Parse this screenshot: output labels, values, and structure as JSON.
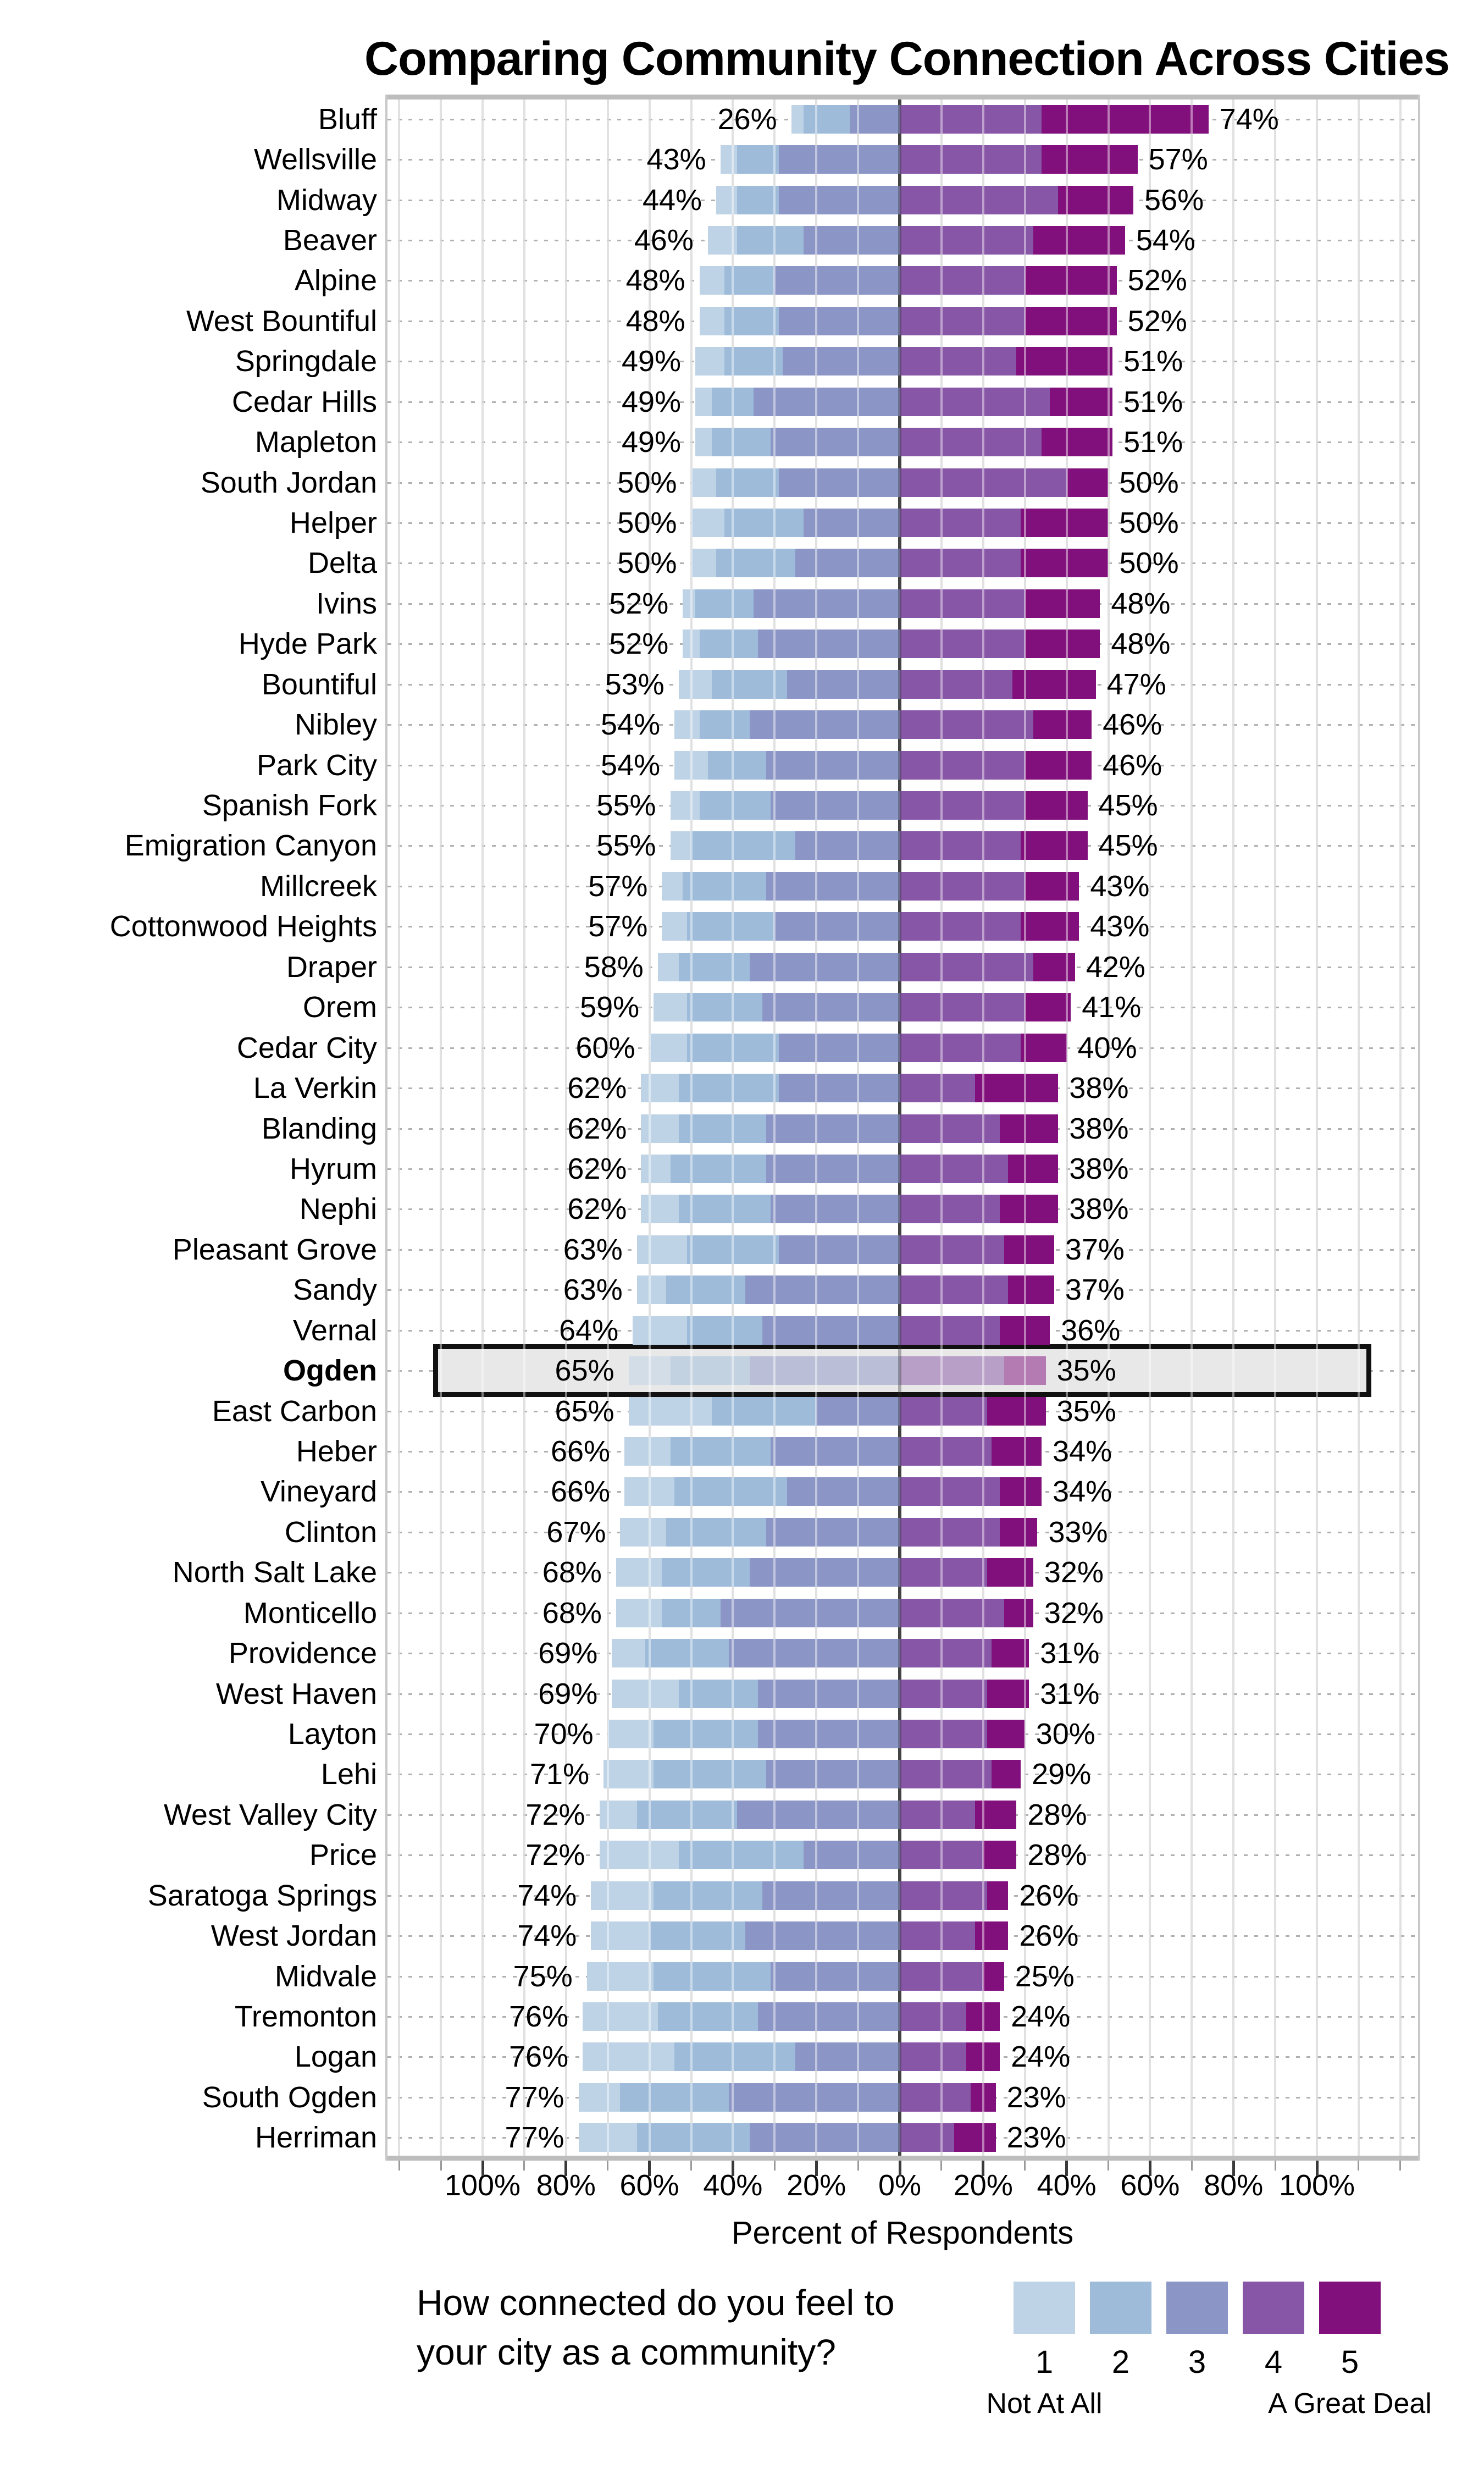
{
  "title": "Comparing Community Connection Across Cities",
  "axis": {
    "xlabel": "Percent of Respondents",
    "tick_values": [
      -100,
      -80,
      -60,
      -40,
      -20,
      0,
      20,
      40,
      60,
      80,
      100
    ],
    "tick_labels": [
      "100%",
      "80%",
      "60%",
      "40%",
      "20%",
      "0%",
      "20%",
      "40%",
      "60%",
      "80%",
      "100%"
    ]
  },
  "legend": {
    "question_line1": "How connected do you feel to",
    "question_line2": "your city as a community?",
    "levels": [
      {
        "label": "1",
        "color": "#bfd3e6"
      },
      {
        "label": "2",
        "color": "#9ebcda"
      },
      {
        "label": "3",
        "color": "#8c96c6"
      },
      {
        "label": "4",
        "color": "#8856a7"
      },
      {
        "label": "5",
        "color": "#810f7c"
      }
    ],
    "low_label": "Not At All",
    "high_label": "A Great Deal"
  },
  "highlight": {
    "city": "Ogden",
    "fill": "#e8e8e8",
    "border": "#111111"
  },
  "chart_data": {
    "type": "bar",
    "variant": "diverging-stacked-likert",
    "orientation": "horizontal",
    "scale_note": "levels 1-3 plotted left of zero, levels 4-5 right of zero; labels show left and right totals",
    "xlim": [
      -123,
      125
    ],
    "grid_step": 10,
    "series_names": [
      "1",
      "2",
      "3",
      "4",
      "5"
    ],
    "series_colors": [
      "#bfd3e6",
      "#9ebcda",
      "#8c96c6",
      "#8856a7",
      "#810f7c"
    ],
    "rows": [
      {
        "city": "Bluff",
        "left": 26,
        "right": 74,
        "seg": [
          3,
          11,
          12,
          34,
          40
        ]
      },
      {
        "city": "Wellsville",
        "left": 43,
        "right": 57,
        "seg": [
          4,
          10,
          29,
          34,
          23
        ]
      },
      {
        "city": "Midway",
        "left": 44,
        "right": 56,
        "seg": [
          5,
          10,
          29,
          38,
          18
        ]
      },
      {
        "city": "Beaver",
        "left": 46,
        "right": 54,
        "seg": [
          7,
          16,
          23,
          32,
          22
        ]
      },
      {
        "city": "Alpine",
        "left": 48,
        "right": 52,
        "seg": [
          6,
          12,
          30,
          30,
          22
        ]
      },
      {
        "city": "West Bountiful",
        "left": 48,
        "right": 52,
        "seg": [
          6,
          13,
          29,
          30,
          22
        ]
      },
      {
        "city": "Springdale",
        "left": 49,
        "right": 51,
        "seg": [
          7,
          14,
          28,
          28,
          23
        ]
      },
      {
        "city": "Cedar Hills",
        "left": 49,
        "right": 51,
        "seg": [
          4,
          10,
          35,
          36,
          15
        ]
      },
      {
        "city": "Mapleton",
        "left": 49,
        "right": 51,
        "seg": [
          4,
          14,
          31,
          34,
          17
        ]
      },
      {
        "city": "South Jordan",
        "left": 50,
        "right": 50,
        "seg": [
          6,
          15,
          29,
          40,
          10
        ]
      },
      {
        "city": "Helper",
        "left": 50,
        "right": 50,
        "seg": [
          8,
          19,
          23,
          29,
          21
        ]
      },
      {
        "city": "Delta",
        "left": 50,
        "right": 50,
        "seg": [
          6,
          19,
          25,
          29,
          21
        ]
      },
      {
        "city": "Ivins",
        "left": 52,
        "right": 48,
        "seg": [
          3,
          14,
          35,
          30,
          18
        ]
      },
      {
        "city": "Hyde Park",
        "left": 52,
        "right": 48,
        "seg": [
          4,
          14,
          34,
          30,
          18
        ]
      },
      {
        "city": "Bountiful",
        "left": 53,
        "right": 47,
        "seg": [
          8,
          18,
          27,
          27,
          20
        ]
      },
      {
        "city": "Nibley",
        "left": 54,
        "right": 46,
        "seg": [
          6,
          12,
          36,
          32,
          14
        ]
      },
      {
        "city": "Park City",
        "left": 54,
        "right": 46,
        "seg": [
          8,
          14,
          32,
          30,
          16
        ]
      },
      {
        "city": "Spanish Fork",
        "left": 55,
        "right": 45,
        "seg": [
          7,
          17,
          31,
          30,
          15
        ]
      },
      {
        "city": "Emigration Canyon",
        "left": 55,
        "right": 45,
        "seg": [
          5,
          25,
          25,
          29,
          16
        ]
      },
      {
        "city": "Millcreek",
        "left": 57,
        "right": 43,
        "seg": [
          5,
          20,
          32,
          30,
          13
        ]
      },
      {
        "city": "Cottonwood Heights",
        "left": 57,
        "right": 43,
        "seg": [
          6,
          21,
          30,
          29,
          14
        ]
      },
      {
        "city": "Draper",
        "left": 58,
        "right": 42,
        "seg": [
          5,
          17,
          36,
          32,
          10
        ]
      },
      {
        "city": "Orem",
        "left": 59,
        "right": 41,
        "seg": [
          8,
          18,
          33,
          30,
          11
        ]
      },
      {
        "city": "Cedar City",
        "left": 60,
        "right": 40,
        "seg": [
          9,
          22,
          29,
          29,
          11
        ]
      },
      {
        "city": "La Verkin",
        "left": 62,
        "right": 38,
        "seg": [
          9,
          24,
          29,
          18,
          20
        ]
      },
      {
        "city": "Blanding",
        "left": 62,
        "right": 38,
        "seg": [
          9,
          21,
          32,
          24,
          14
        ]
      },
      {
        "city": "Hyrum",
        "left": 62,
        "right": 38,
        "seg": [
          7,
          23,
          32,
          26,
          12
        ]
      },
      {
        "city": "Nephi",
        "left": 62,
        "right": 38,
        "seg": [
          9,
          22,
          31,
          24,
          14
        ]
      },
      {
        "city": "Pleasant Grove",
        "left": 63,
        "right": 37,
        "seg": [
          12,
          22,
          29,
          25,
          12
        ]
      },
      {
        "city": "Sandy",
        "left": 63,
        "right": 37,
        "seg": [
          7,
          19,
          37,
          26,
          11
        ]
      },
      {
        "city": "Vernal",
        "left": 64,
        "right": 36,
        "seg": [
          13,
          18,
          33,
          24,
          12
        ]
      },
      {
        "city": "Ogden",
        "left": 65,
        "right": 35,
        "seg": [
          10,
          19,
          36,
          25,
          10
        ]
      },
      {
        "city": "East Carbon",
        "left": 65,
        "right": 35,
        "seg": [
          20,
          25,
          20,
          21,
          14
        ]
      },
      {
        "city": "Heber",
        "left": 66,
        "right": 34,
        "seg": [
          11,
          24,
          31,
          22,
          12
        ]
      },
      {
        "city": "Vineyard",
        "left": 66,
        "right": 34,
        "seg": [
          12,
          27,
          27,
          24,
          10
        ]
      },
      {
        "city": "Clinton",
        "left": 67,
        "right": 33,
        "seg": [
          11,
          24,
          32,
          24,
          9
        ]
      },
      {
        "city": "North Salt Lake",
        "left": 68,
        "right": 32,
        "seg": [
          11,
          21,
          36,
          21,
          11
        ]
      },
      {
        "city": "Monticello",
        "left": 68,
        "right": 32,
        "seg": [
          11,
          14,
          43,
          25,
          7
        ]
      },
      {
        "city": "Providence",
        "left": 69,
        "right": 31,
        "seg": [
          8,
          20,
          41,
          22,
          9
        ]
      },
      {
        "city": "West Haven",
        "left": 69,
        "right": 31,
        "seg": [
          16,
          19,
          34,
          21,
          10
        ]
      },
      {
        "city": "Layton",
        "left": 70,
        "right": 30,
        "seg": [
          11,
          25,
          34,
          21,
          9
        ]
      },
      {
        "city": "Lehi",
        "left": 71,
        "right": 29,
        "seg": [
          12,
          27,
          32,
          22,
          7
        ]
      },
      {
        "city": "West Valley City",
        "left": 72,
        "right": 28,
        "seg": [
          9,
          24,
          39,
          18,
          10
        ]
      },
      {
        "city": "Price",
        "left": 72,
        "right": 28,
        "seg": [
          19,
          30,
          23,
          20,
          8
        ]
      },
      {
        "city": "Saratoga Springs",
        "left": 74,
        "right": 26,
        "seg": [
          15,
          26,
          33,
          21,
          5
        ]
      },
      {
        "city": "West Jordan",
        "left": 74,
        "right": 26,
        "seg": [
          14,
          23,
          37,
          18,
          8
        ]
      },
      {
        "city": "Midvale",
        "left": 75,
        "right": 25,
        "seg": [
          16,
          28,
          31,
          20,
          5
        ]
      },
      {
        "city": "Tremonton",
        "left": 76,
        "right": 24,
        "seg": [
          18,
          24,
          34,
          16,
          8
        ]
      },
      {
        "city": "Logan",
        "left": 76,
        "right": 24,
        "seg": [
          22,
          29,
          25,
          16,
          8
        ]
      },
      {
        "city": "South Ogden",
        "left": 77,
        "right": 23,
        "seg": [
          10,
          26,
          41,
          17,
          6
        ]
      },
      {
        "city": "Herriman",
        "left": 77,
        "right": 23,
        "seg": [
          14,
          27,
          36,
          13,
          10
        ]
      }
    ]
  }
}
